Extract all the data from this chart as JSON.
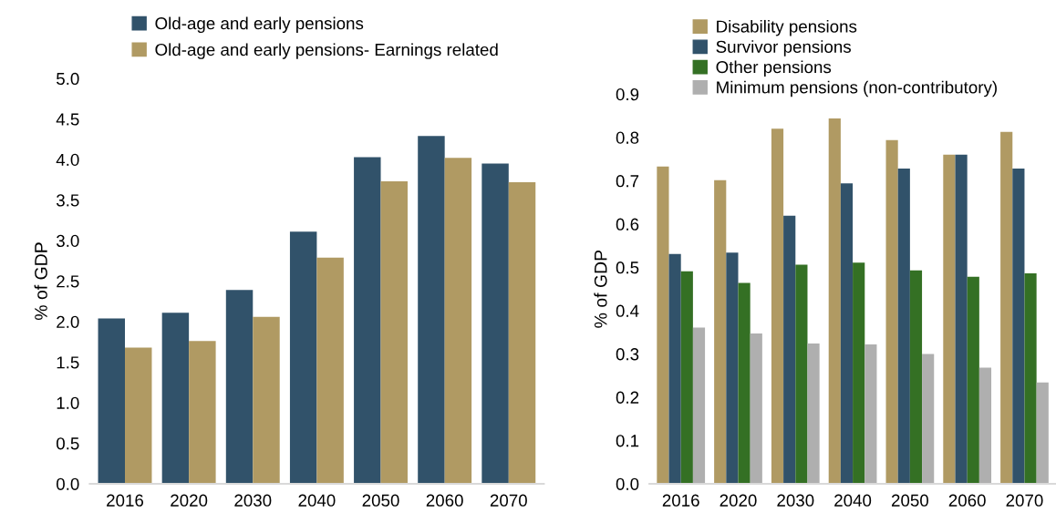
{
  "chart_data": [
    {
      "type": "bar",
      "ylabel": "% of GDP",
      "categories": [
        "2016",
        "2020",
        "2030",
        "2040",
        "2050",
        "2060",
        "2070"
      ],
      "series": [
        {
          "name": "Old-age and early pensions",
          "color": "#31526a",
          "values": [
            2.04,
            2.11,
            2.39,
            3.11,
            4.03,
            4.29,
            3.95
          ]
        },
        {
          "name": "Old-age and early pensions- Earnings related",
          "color": "#b09a63",
          "values": [
            1.68,
            1.76,
            2.06,
            2.79,
            3.73,
            4.02,
            3.72
          ]
        }
      ],
      "ylim": [
        0,
        5
      ],
      "yticks": [
        {
          "value": 0,
          "label": "0.0"
        },
        {
          "value": 0.5,
          "label": "0.5"
        },
        {
          "value": 1,
          "label": "1.0"
        },
        {
          "value": 1.5,
          "label": "1.5"
        },
        {
          "value": 2,
          "label": "2.0"
        },
        {
          "value": 2.5,
          "label": "2.5"
        },
        {
          "value": 3,
          "label": "3.0"
        },
        {
          "value": 3.5,
          "label": "3.5"
        },
        {
          "value": 4,
          "label": "4.0"
        },
        {
          "value": 4.5,
          "label": "4.5"
        },
        {
          "value": 5,
          "label": "5.0"
        }
      ],
      "grid": false,
      "legend": "top left"
    },
    {
      "type": "bar",
      "ylabel": "% of GDP",
      "categories": [
        "2016",
        "2020",
        "2030",
        "2040",
        "2050",
        "2060",
        "2070"
      ],
      "series": [
        {
          "name": "Disability pensions",
          "color": "#b09a63",
          "values": [
            0.733,
            0.701,
            0.82,
            0.844,
            0.794,
            0.76,
            0.813
          ]
        },
        {
          "name": "Survivor pensions",
          "color": "#31526a",
          "values": [
            0.531,
            0.534,
            0.619,
            0.694,
            0.728,
            0.76,
            0.728
          ]
        },
        {
          "name": "Other pensions",
          "color": "#347024",
          "values": [
            0.491,
            0.464,
            0.506,
            0.511,
            0.493,
            0.478,
            0.486
          ]
        },
        {
          "name": "Minimum pensions (non-contributory)",
          "color": "#afafaf",
          "values": [
            0.361,
            0.347,
            0.324,
            0.322,
            0.3,
            0.268,
            0.234
          ]
        }
      ],
      "ylim": [
        0,
        0.9
      ],
      "yticks": [
        {
          "value": 0,
          "label": "0.0"
        },
        0.1,
        0.2,
        0.3,
        0.4,
        0.5,
        0.6,
        0.7,
        0.8,
        0.9
      ],
      "grid": false,
      "legend": "top left"
    }
  ]
}
